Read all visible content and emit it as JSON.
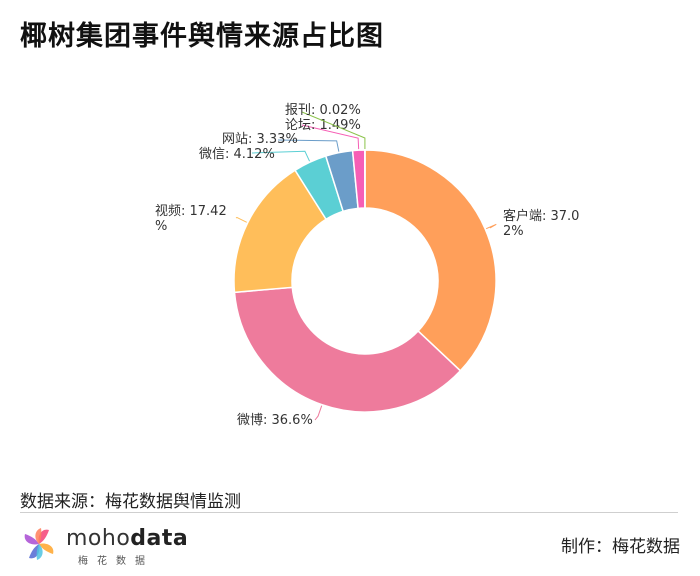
{
  "page": {
    "title": "椰树集团事件舆情来源占比图",
    "source": "数据来源：梅花数据舆情监测",
    "maker": "制作：梅花数据",
    "logo_brand_light": "moho",
    "logo_brand_bold": "data",
    "logo_sub": "梅花数据"
  },
  "chart_data": {
    "type": "pie",
    "title": "椰树集团事件舆情来源占比图",
    "donut": true,
    "slices": [
      {
        "name": "客户端",
        "value": 37.02,
        "label_lines": [
          "客户端: 37.0",
          "2%"
        ],
        "color": "#FF9F5A"
      },
      {
        "name": "微博",
        "value": 36.6,
        "label_lines": [
          "微博: 36.6%"
        ],
        "color": "#EE7B9C"
      },
      {
        "name": "视频",
        "value": 17.42,
        "label_lines": [
          "视频: 17.42",
          "%"
        ],
        "color": "#FFBE5A"
      },
      {
        "name": "微信",
        "value": 4.12,
        "label_lines": [
          "微信: 4.12%"
        ],
        "color": "#5BCFD4"
      },
      {
        "name": "网站",
        "value": 3.33,
        "label_lines": [
          "网站: 3.33%"
        ],
        "color": "#6B9DC9"
      },
      {
        "name": "论坛",
        "value": 1.49,
        "label_lines": [
          "论坛: 1.49%"
        ],
        "color": "#F65EB5"
      },
      {
        "name": "报刊",
        "value": 0.02,
        "label_lines": [
          "报刊: 0.02%"
        ],
        "color": "#8BC34A"
      }
    ]
  }
}
